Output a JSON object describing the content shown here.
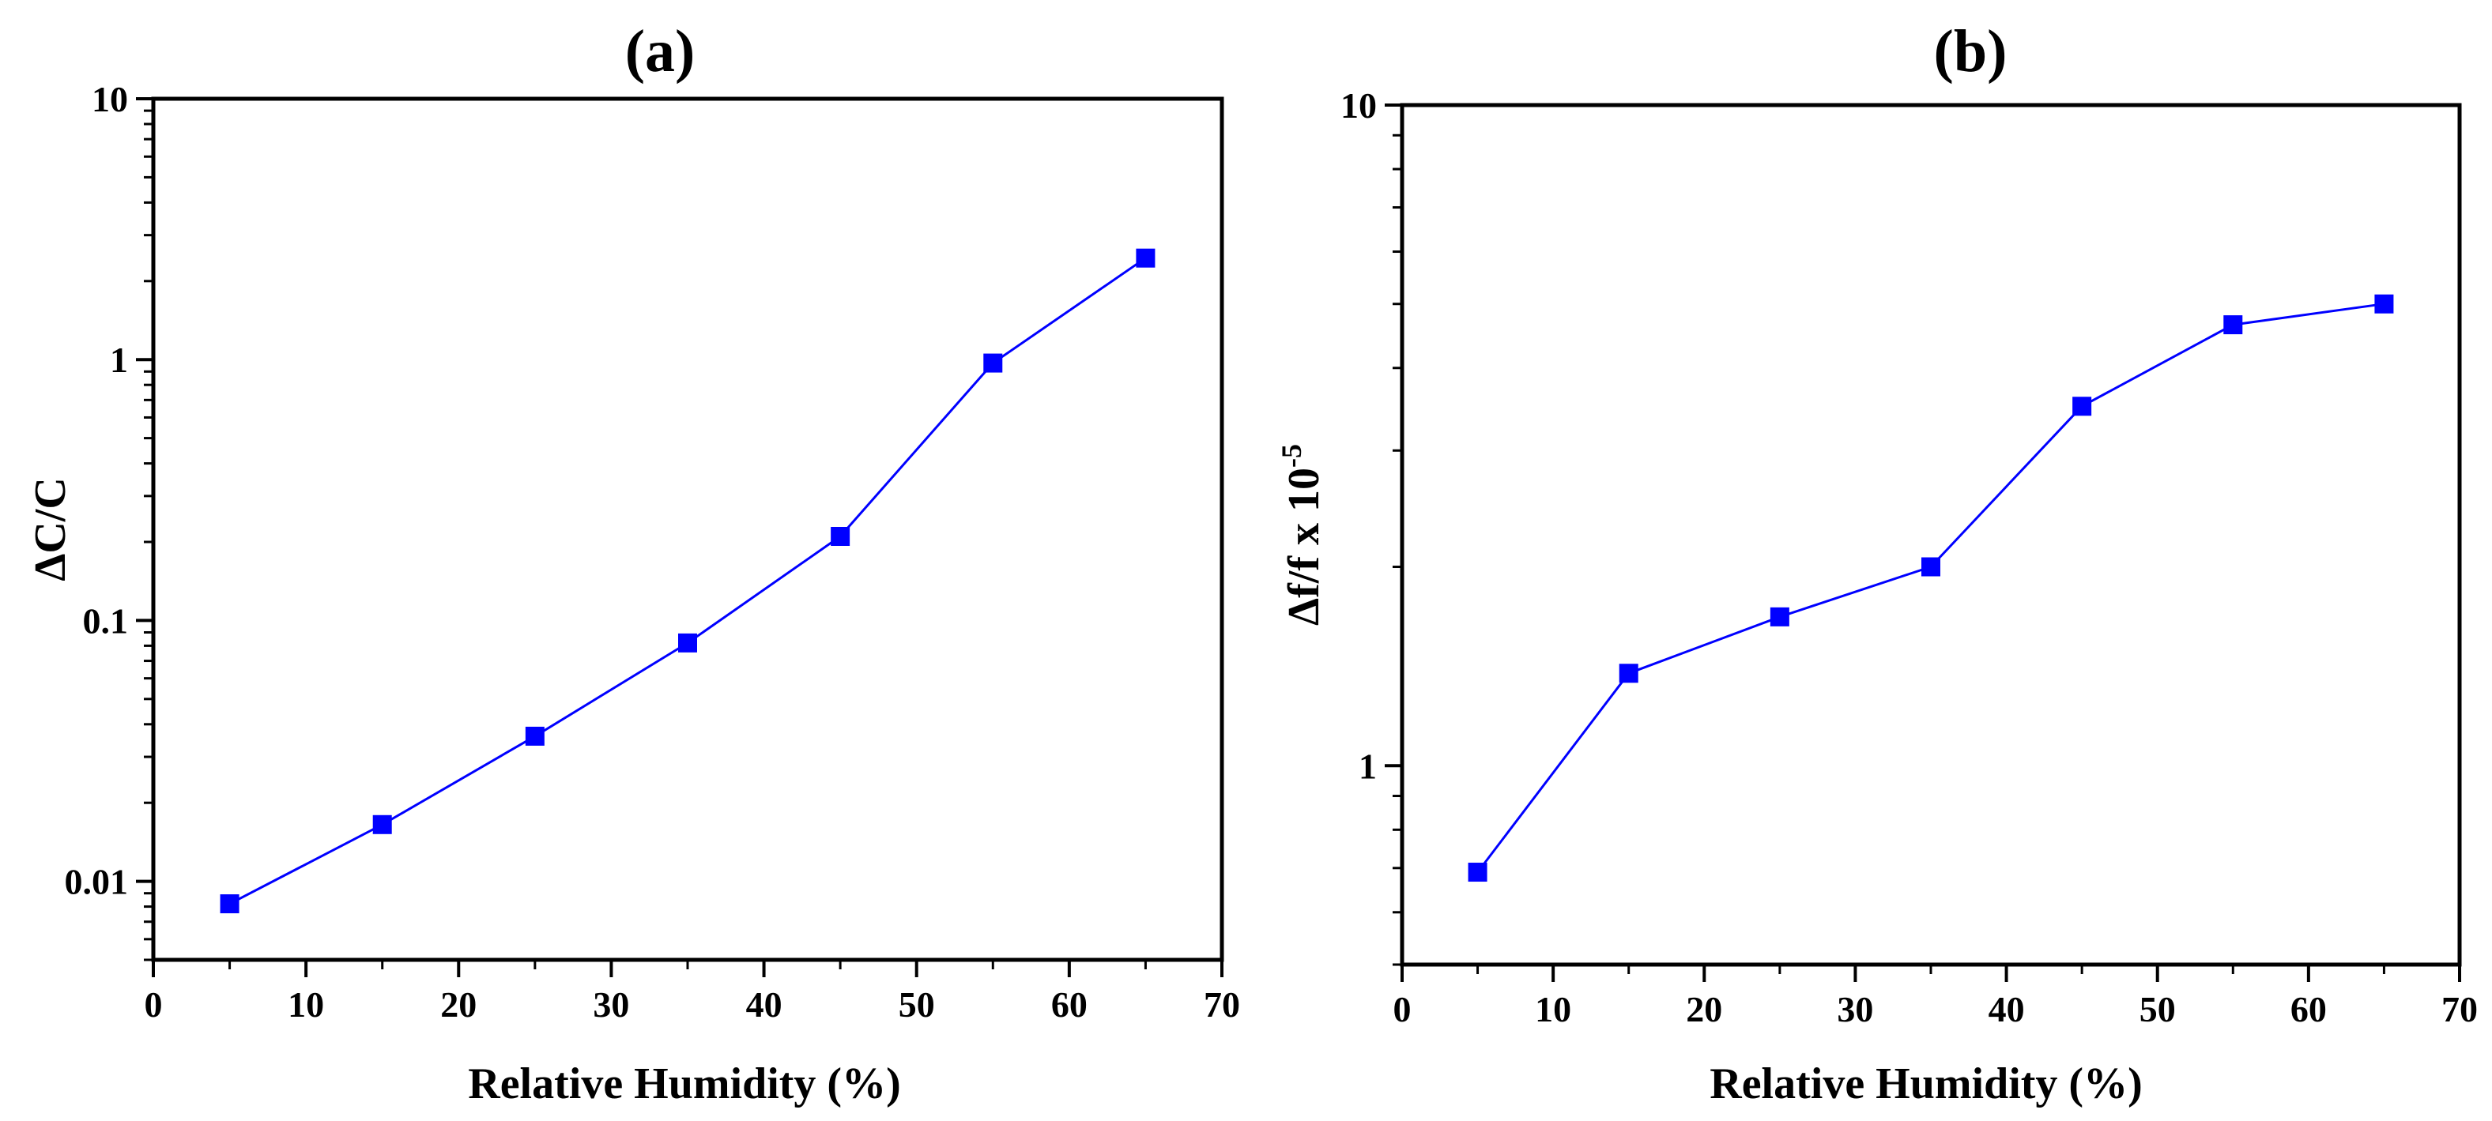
{
  "chart_data": [
    {
      "type": "line",
      "title": "(a)",
      "xlabel": "Relative Humidity (%)",
      "ylabel": "ΔC/C",
      "xlim": [
        0,
        70
      ],
      "ylim": [
        0.005,
        10
      ],
      "yscale": "log",
      "xticks": [
        0,
        10,
        20,
        30,
        40,
        50,
        60,
        70
      ],
      "xtick_labels": [
        "0",
        "10",
        "20",
        "30",
        "40",
        "50",
        "60",
        "70"
      ],
      "yticks": [
        0.01,
        0.1,
        1,
        10
      ],
      "ytick_labels": [
        "0.01",
        "0.1",
        "1",
        "10"
      ],
      "marker": "square",
      "color": "#0000ff",
      "series": [
        {
          "name": "ΔC/C",
          "x": [
            5,
            15,
            25,
            35,
            45,
            55,
            65
          ],
          "y": [
            0.0082,
            0.0165,
            0.036,
            0.082,
            0.21,
            0.97,
            2.45
          ]
        }
      ]
    },
    {
      "type": "line",
      "title": "(b)",
      "xlabel": "Relative Humidity (%)",
      "ylabel": "Δf/f x 10",
      "ylabel_superscript": "-5",
      "xlim": [
        0,
        70
      ],
      "ylim": [
        0.5,
        10
      ],
      "yscale": "log",
      "xticks": [
        0,
        10,
        20,
        30,
        40,
        50,
        60,
        70
      ],
      "xtick_labels": [
        "0",
        "10",
        "20",
        "30",
        "40",
        "50",
        "60",
        "70"
      ],
      "yticks": [
        1,
        10
      ],
      "ytick_labels": [
        "1",
        "10"
      ],
      "marker": "square",
      "color": "#0000ff",
      "series": [
        {
          "name": "Δf/f",
          "x": [
            5,
            15,
            25,
            35,
            45,
            55,
            65
          ],
          "y": [
            0.69,
            1.38,
            1.68,
            2.0,
            3.5,
            4.65,
            5.0
          ]
        }
      ]
    }
  ]
}
